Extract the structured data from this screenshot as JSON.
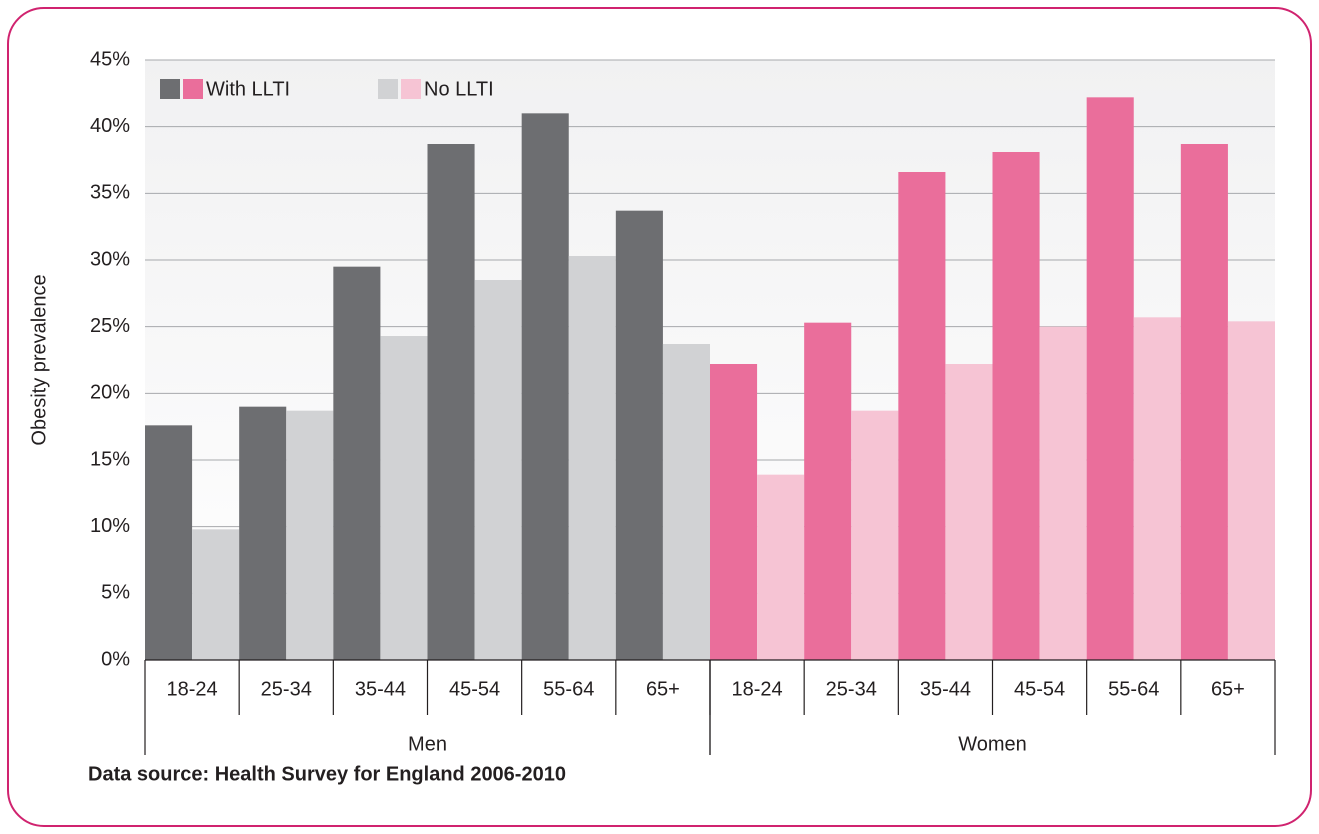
{
  "chart_data": {
    "type": "grouped-bar",
    "y_label": "Obesity prevalence",
    "source": "Data source: Health Survey for England 2006-2010",
    "groups": [
      {
        "name": "Men",
        "categories": [
          "18-24",
          "25-34",
          "35-44",
          "45-54",
          "55-64",
          "65+"
        ]
      },
      {
        "name": "Women",
        "categories": [
          "18-24",
          "25-34",
          "35-44",
          "45-54",
          "55-64",
          "65+"
        ]
      }
    ],
    "series": [
      {
        "name": "With LLTI",
        "colors": [
          "#6d6e71",
          "#ea6e9b"
        ],
        "values": [
          [
            17.6,
            19.0,
            29.5,
            38.7,
            41.0,
            33.7
          ],
          [
            22.2,
            25.3,
            36.6,
            38.1,
            42.2,
            38.7
          ]
        ]
      },
      {
        "name": "No LLTI",
        "colors": [
          "#d1d2d4",
          "#f6c4d4"
        ],
        "values": [
          [
            9.8,
            18.7,
            24.3,
            28.5,
            30.3,
            23.7
          ],
          [
            13.9,
            18.7,
            22.2,
            25.0,
            25.7,
            25.4
          ]
        ]
      }
    ],
    "ylim": [
      0,
      45
    ],
    "yticks": [
      {
        "value": 0,
        "label": "0%"
      },
      {
        "value": 5,
        "label": "5%"
      },
      {
        "value": 10,
        "label": "10%"
      },
      {
        "value": 15,
        "label": "15%"
      },
      {
        "value": 20,
        "label": "20%"
      },
      {
        "value": 25,
        "label": "25%"
      },
      {
        "value": 30,
        "label": "30%"
      },
      {
        "value": 35,
        "label": "35%"
      },
      {
        "value": 40,
        "label": "40%"
      },
      {
        "value": 45,
        "label": "45%"
      }
    ],
    "grid": true
  }
}
